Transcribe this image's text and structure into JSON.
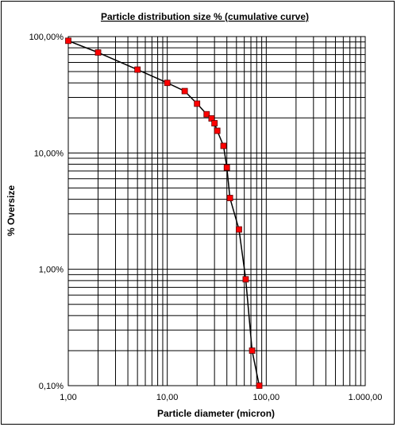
{
  "chart_data": {
    "type": "line",
    "title": "Particle distribution size  % (cumulative curve)",
    "xlabel": "Particle diameter (micron)",
    "ylabel": "% Oversize",
    "x_scale": "log",
    "y_scale": "log",
    "xlim": [
      1,
      1000
    ],
    "ylim": [
      0.1,
      100
    ],
    "x_ticks": [
      "1,00",
      "10,00",
      "100,00",
      "1.000,00"
    ],
    "y_ticks": [
      "100,00%",
      "10,00%",
      "1,00%",
      "0,10%"
    ],
    "grid": true,
    "legend": "none",
    "line_color": "#000000",
    "marker_color": "#ff0000",
    "series": [
      {
        "x": [
          1,
          2,
          5,
          10,
          15,
          20,
          25,
          28,
          30,
          32,
          37,
          40,
          43,
          53,
          62,
          72,
          85
        ],
        "values": [
          92,
          73,
          52,
          40,
          34,
          26.5,
          21.5,
          19.8,
          18,
          15.5,
          11.5,
          7.5,
          4.1,
          2.2,
          0.82,
          0.2,
          0.1
        ]
      }
    ]
  }
}
